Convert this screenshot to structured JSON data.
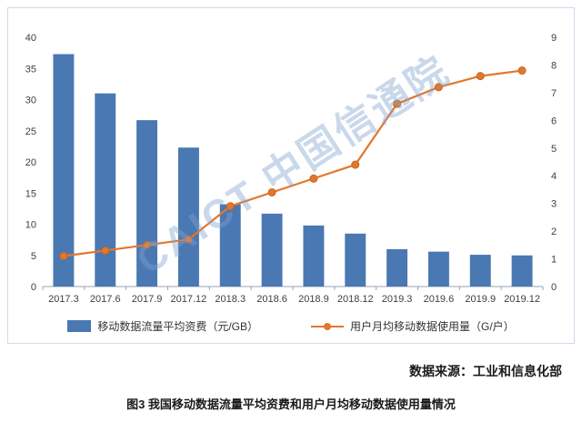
{
  "watermark": {
    "text": "CAICT 中国信通院",
    "color": "rgba(128,163,208,0.42)"
  },
  "chart_data": {
    "type": "bar",
    "subtype": "bar+line combo, dual axis",
    "categories": [
      "2017.3",
      "2017.6",
      "2017.9",
      "2017.12",
      "2018.3",
      "2018.6",
      "2018.9",
      "2018.12",
      "2019.3",
      "2019.6",
      "2019.9",
      "2019.12"
    ],
    "series": [
      {
        "name": "移动数据流量平均资费（元/GB）",
        "type": "bar",
        "axis": "left",
        "color": "#4a78b2",
        "values": [
          37.3,
          31.0,
          26.7,
          22.3,
          13.2,
          11.7,
          9.8,
          8.5,
          6.0,
          5.6,
          5.1,
          5.0
        ]
      },
      {
        "name": "用户月均移动数据使用量（G/户）",
        "type": "line",
        "axis": "right",
        "color": "#e2772e",
        "values": [
          1.1,
          1.3,
          1.5,
          1.7,
          2.9,
          3.4,
          3.9,
          4.4,
          6.6,
          7.2,
          7.6,
          7.8
        ]
      }
    ],
    "left_axis": {
      "min": 0,
      "max": 40,
      "step": 5
    },
    "right_axis": {
      "min": 0,
      "max": 9,
      "step": 1
    },
    "grid": false,
    "legend_position": "bottom",
    "title": "图3  我国移动数据流量平均资费和用户月均移动数据使用量情况"
  },
  "source": "数据来源：工业和信息化部",
  "caption": "图3  我国移动数据流量平均资费和用户月均移动数据使用量情况"
}
